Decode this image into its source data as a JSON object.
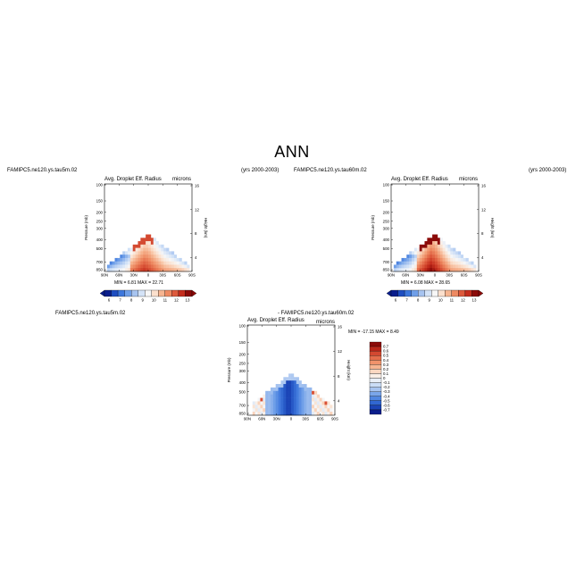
{
  "page": {
    "title": "ANN"
  },
  "colors": {
    "cool": [
      "#0a1e8c",
      "#1f4ec0",
      "#3d77dc",
      "#6f9fe8",
      "#a7c4f0",
      "#d4e3f7"
    ],
    "neutral": "#f7f7f7",
    "warm": [
      "#fbe0cd",
      "#f6b591",
      "#ee8a62",
      "#dd5a3c",
      "#c42d1d",
      "#8b0a08"
    ]
  },
  "chart_data": [
    {
      "type": "heatmap",
      "case_label": "FAMIPC5.ne120.ys.tau5m.02",
      "years": "(yrs 2000-2003)",
      "title": "Avg. Droplet Eff. Radius",
      "units": "microns",
      "ylabel": "Pressure (mb)",
      "ylabel_right": "Height (km)",
      "x_ticks": [
        "90N",
        "60N",
        "30N",
        "0",
        "30S",
        "60S",
        "90S"
      ],
      "y_ticks": [
        "100",
        "150",
        "200",
        "250",
        "300",
        "400",
        "500",
        "700",
        "850"
      ],
      "y_ticks_right": [
        "16",
        "12",
        "8",
        "4"
      ],
      "min": "6.81",
      "max": "22.71",
      "stats_text": "MIN =   6.81   MAX =   22.71",
      "colorbar_labels": [
        "6",
        "7",
        "8",
        "9",
        "10",
        "11",
        "12",
        "13"
      ]
    },
    {
      "type": "heatmap",
      "case_label": "FAMIPC5.ne120.ys.tau60m.02",
      "years": "(yrs 2000-2003)",
      "title": "Avg. Droplet Eff. Radius",
      "units": "microns",
      "ylabel": "Pressure (mb)",
      "ylabel_right": "Height (km)",
      "x_ticks": [
        "90N",
        "60N",
        "30N",
        "0",
        "30S",
        "60S",
        "90S"
      ],
      "y_ticks": [
        "100",
        "150",
        "200",
        "250",
        "300",
        "400",
        "500",
        "700",
        "850"
      ],
      "y_ticks_right": [
        "16",
        "12",
        "8",
        "4"
      ],
      "min": "6.08",
      "max": "28.65",
      "stats_text": "MIN =   6.08   MAX =   28.65",
      "colorbar_labels": [
        "6",
        "7",
        "8",
        "9",
        "10",
        "11",
        "12",
        "13"
      ]
    },
    {
      "type": "heatmap",
      "case_label": "FAMIPC5.ne120.ys.tau5m.02",
      "diff_label": "- FAMIPC5.ne120.ys.tau60m.02",
      "title": "Avg. Droplet Eff. Radius",
      "units": "microns",
      "ylabel": "Pressure (mb)",
      "ylabel_right": "Height (km)",
      "x_ticks": [
        "90N",
        "60N",
        "30N",
        "0",
        "30S",
        "60S",
        "90S"
      ],
      "y_ticks": [
        "100",
        "150",
        "200",
        "250",
        "300",
        "400",
        "500",
        "700",
        "850"
      ],
      "y_ticks_right": [
        "16",
        "12",
        "8",
        "4"
      ],
      "min": "-17.15",
      "max": "8.49",
      "stats_text": "MIN = -17.15   MAX =   8.49",
      "colorbar_labels": [
        "0.7",
        "0.6",
        "0.5",
        "0.4",
        "0.3",
        "0.2",
        "0.1",
        "0",
        "-0.1",
        "-0.2",
        "-0.3",
        "-0.4",
        "-0.5",
        "-0.6",
        "-0.7"
      ]
    }
  ]
}
